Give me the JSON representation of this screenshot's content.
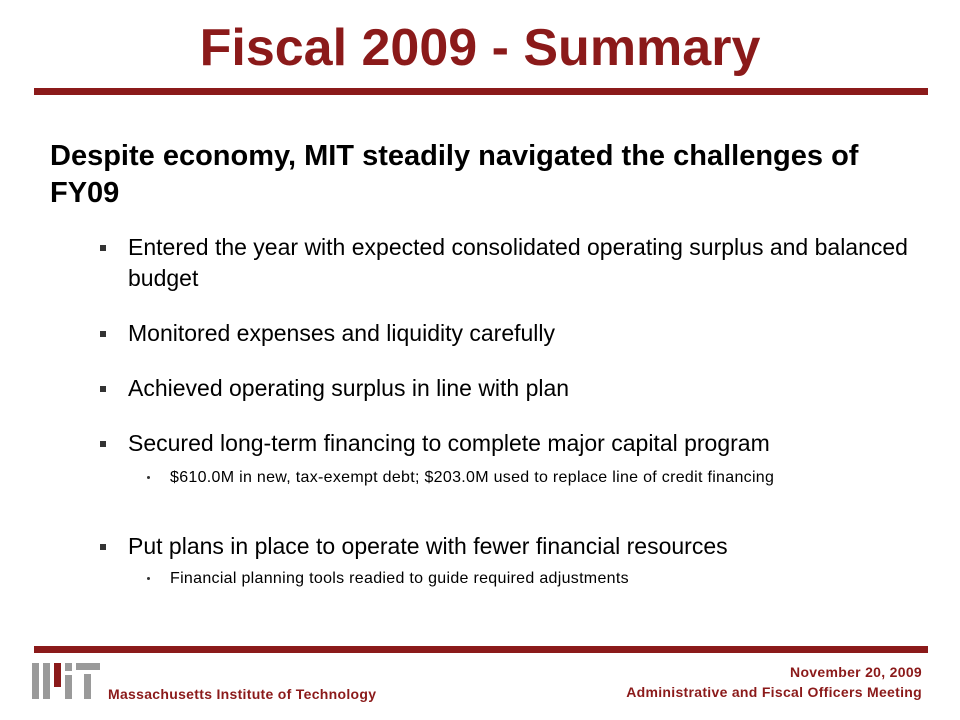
{
  "slide": {
    "title": "Fiscal 2009 - Summary",
    "heading": "Despite economy, MIT steadily navigated the challenges of FY09",
    "bullets": [
      {
        "text": "Entered the year with expected consolidated operating surplus and balanced budget"
      },
      {
        "text": "Monitored expenses and liquidity carefully"
      },
      {
        "text": "Achieved operating surplus in line with plan"
      },
      {
        "text": "Secured long-term financing to complete major capital program",
        "sub": "$610.0M in new, tax-exempt debt; $203.0M used to replace line of credit financing"
      },
      {
        "text": "Put plans in place to operate with fewer financial resources",
        "sub": "Financial planning tools readied to guide required adjustments"
      }
    ]
  },
  "footer": {
    "logo": "MIT",
    "organization": "Massachusetts Institute of Technology",
    "date": "November 20, 2009",
    "meeting": "Administrative and Fiscal Officers Meeting"
  },
  "colors": {
    "accent": "#8b1a1a",
    "logo_gray": "#9a9a9a"
  }
}
